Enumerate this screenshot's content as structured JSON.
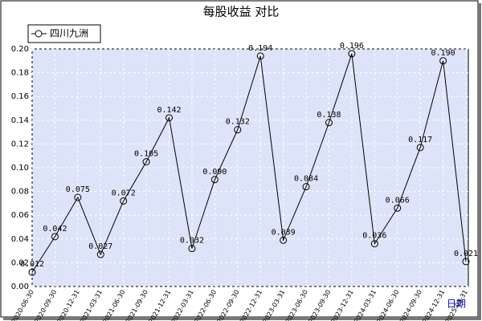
{
  "chart_data": {
    "type": "line",
    "title": "每股收益  对比",
    "x_label": "日期",
    "categories": [
      "2020-06-30",
      "2020-09-30",
      "2020-12-31",
      "2021-03-31",
      "2021-06-30",
      "2021-09-30",
      "2021-12-31",
      "2022-03-31",
      "2022-06-30",
      "2022-09-30",
      "2022-12-31",
      "2023-03-31",
      "2023-06-30",
      "2023-09-30",
      "2023-12-31",
      "2024-03-31",
      "2024-06-30",
      "2024-09-30",
      "2024-12-31",
      "2025-03-31"
    ],
    "series": [
      {
        "name": "四川九洲",
        "color": "#000000",
        "values": [
          0.012,
          0.042,
          0.075,
          0.027,
          0.072,
          0.105,
          0.142,
          0.032,
          0.09,
          0.132,
          0.194,
          0.039,
          0.084,
          0.138,
          0.196,
          0.036,
          0.066,
          0.117,
          0.19,
          0.021
        ],
        "value_labels": [
          "0.012",
          "0.042",
          "0.075",
          "0.027",
          "0.072",
          "0.105",
          "0.142",
          "0.032",
          "0.090",
          "0.132",
          "0.194",
          "0.039",
          "0.084",
          "0.138",
          "0.196",
          "0.036",
          "0.066",
          "0.117",
          "0.190",
          "0.021"
        ]
      }
    ],
    "ylim": [
      0,
      0.2
    ],
    "yticks": [
      {
        "value": 0,
        "label": "0.00"
      },
      0.02,
      0.04,
      0.06,
      0.08,
      {
        "value": 0.1,
        "label": "0.10"
      },
      0.12,
      0.14,
      0.16,
      0.18,
      {
        "value": 0.2,
        "label": "0.20"
      }
    ],
    "grid": true,
    "legend": "top-left"
  }
}
